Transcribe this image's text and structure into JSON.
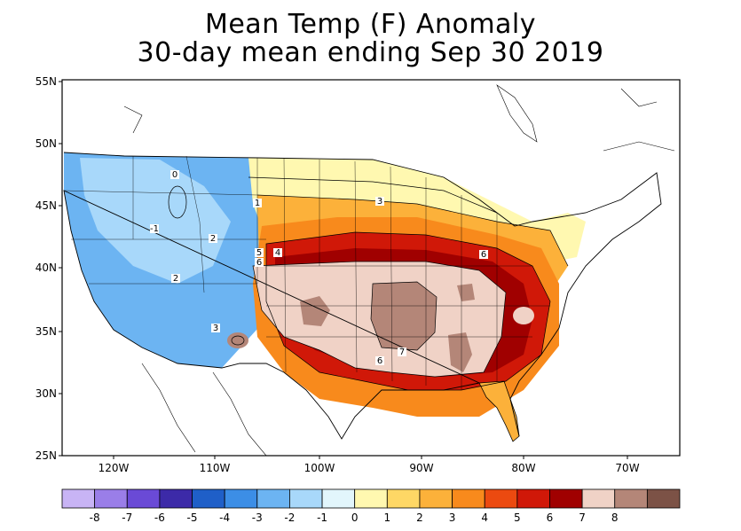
{
  "title": {
    "line1": "Mean Temp (F) Anomaly",
    "line2": "30-day mean ending Sep 30 2019"
  },
  "axes": {
    "lat_labels": [
      "55N",
      "50N",
      "45N",
      "40N",
      "35N",
      "30N",
      "25N"
    ],
    "lon_labels": [
      "120W",
      "110W",
      "100W",
      "90W",
      "80W",
      "70W"
    ]
  },
  "colorbar": {
    "colors": [
      "#c8b4f5",
      "#9a7ee8",
      "#6a4ad6",
      "#3c2aa8",
      "#1f5fc8",
      "#3c8ee6",
      "#6cb4f2",
      "#a8d8fa",
      "#e2f6fc",
      "#fff8b0",
      "#fed765",
      "#fcb13a",
      "#f88a1c",
      "#ec4a10",
      "#d01808",
      "#a00000",
      "#f0d2c6",
      "#b48678",
      "#7c5246"
    ],
    "labels": [
      "-8",
      "-7",
      "-6",
      "-5",
      "-4",
      "-3",
      "-2",
      "-1",
      "0",
      "1",
      "2",
      "3",
      "4",
      "5",
      "6",
      "7",
      "8"
    ]
  },
  "contour_labels": [
    "0",
    "1",
    "-1",
    "2",
    "4",
    "5",
    "6",
    "2",
    "3",
    "3",
    "7",
    "6",
    "6"
  ],
  "regions": {
    "west_cool": "#6cb4f2",
    "west_cooler": "#3c8ee6",
    "northwest_neutral": "#a8d8fa",
    "north_plains": "#fff8b0",
    "plains_warm": "#fcb13a",
    "midwest_warm": "#f88a1c",
    "central_hot": "#d01808",
    "core_hot": "#a00000",
    "south_core": "#f0d2c6",
    "peak": "#b48678"
  }
}
